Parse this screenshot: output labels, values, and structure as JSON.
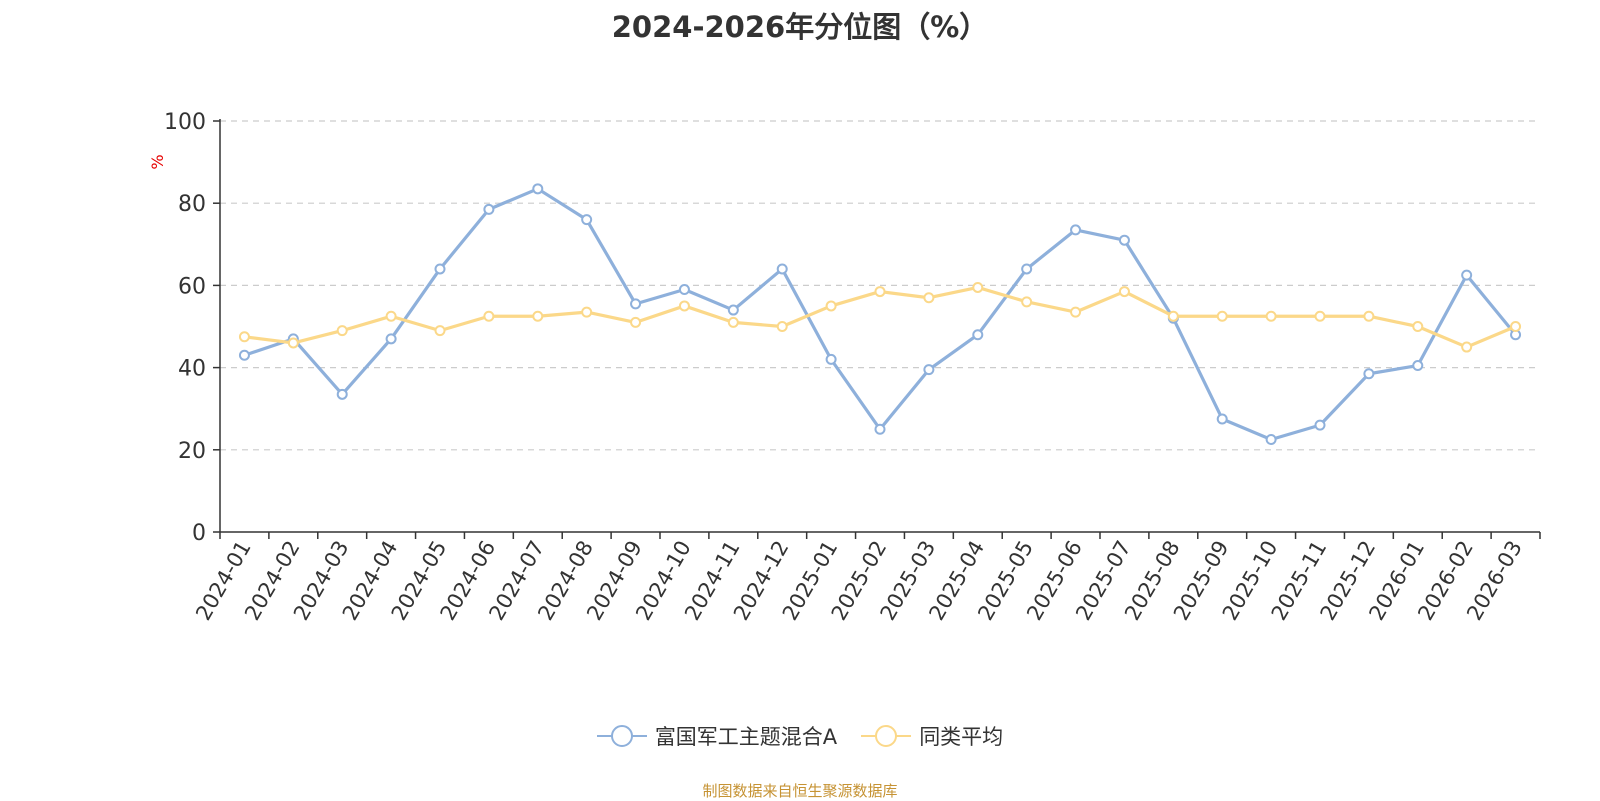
{
  "chart_data": {
    "type": "line",
    "title": "2024-2026年分位图（%）",
    "ylabel": "%",
    "xlabel": "",
    "ylim": [
      0,
      100
    ],
    "yticks": [
      0,
      20,
      40,
      60,
      80,
      100
    ],
    "grid": true,
    "legend_position": "bottom",
    "categories": [
      "2024-01",
      "2024-02",
      "2024-03",
      "2024-04",
      "2024-05",
      "2024-06",
      "2024-07",
      "2024-08",
      "2024-09",
      "2024-10",
      "2024-11",
      "2024-12",
      "2025-01",
      "2025-02",
      "2025-03",
      "2025-04",
      "2025-05",
      "2025-06",
      "2025-07",
      "2025-08",
      "2025-09",
      "2025-10",
      "2025-11",
      "2025-12",
      "2026-01",
      "2026-02",
      "2026-03"
    ],
    "series": [
      {
        "name": "富国军工主题混合A",
        "color": "#8eb0db",
        "values": [
          43,
          47,
          33.5,
          47,
          64,
          78.5,
          83.5,
          76,
          55.5,
          59,
          54,
          64,
          42,
          25,
          39.5,
          48,
          64,
          73.5,
          71,
          52,
          27.5,
          22.5,
          26,
          38.5,
          40.5,
          62.5,
          48
        ]
      },
      {
        "name": "同类平均",
        "color": "#fbd889",
        "values": [
          47.5,
          46,
          49,
          52.5,
          49,
          52.5,
          52.5,
          53.5,
          51,
          55,
          51,
          50,
          55,
          58.5,
          57,
          59.5,
          56,
          53.5,
          58.5,
          52.5,
          52.5,
          52.5,
          52.5,
          52.5,
          50,
          45,
          50
        ]
      }
    ]
  },
  "footer": {
    "source": "制图数据来自恒生聚源数据库"
  }
}
